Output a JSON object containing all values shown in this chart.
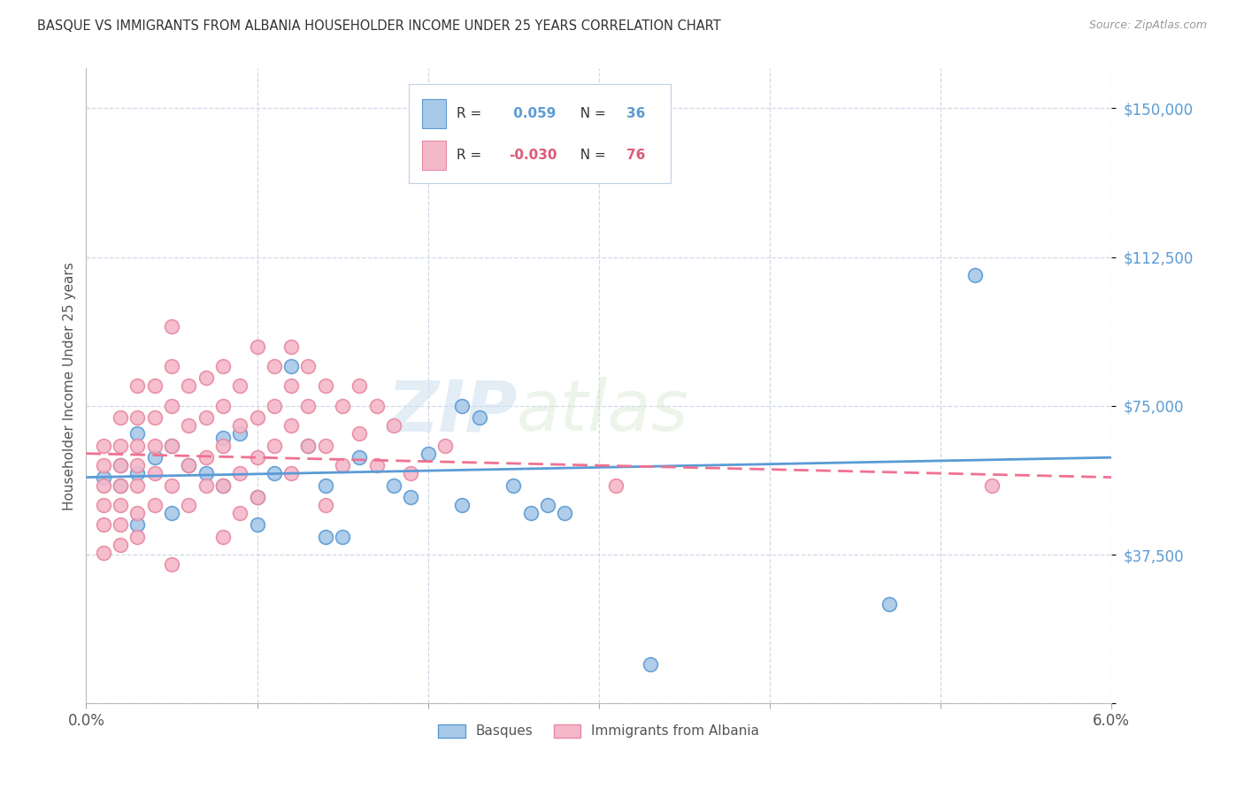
{
  "title": "BASQUE VS IMMIGRANTS FROM ALBANIA HOUSEHOLDER INCOME UNDER 25 YEARS CORRELATION CHART",
  "source": "Source: ZipAtlas.com",
  "ylabel": "Householder Income Under 25 years",
  "xlim": [
    0.0,
    0.06
  ],
  "ylim": [
    0,
    160000
  ],
  "yticks": [
    0,
    37500,
    75000,
    112500,
    150000
  ],
  "xticks": [
    0.0,
    0.01,
    0.02,
    0.03,
    0.04,
    0.05,
    0.06
  ],
  "xtick_labels": [
    "0.0%",
    "",
    "",
    "",
    "",
    "",
    "6.0%"
  ],
  "basque_R": 0.059,
  "basque_N": 36,
  "albania_R": -0.03,
  "albania_N": 76,
  "basque_color": "#a8c8e8",
  "basque_edge_color": "#5b9bd5",
  "albania_color": "#f4b8ca",
  "albania_edge_color": "#e888a0",
  "basque_line_color": "#5b9bd5",
  "albania_line_color": "#f07090",
  "basque_scatter": [
    [
      0.001,
      57000
    ],
    [
      0.002,
      60000
    ],
    [
      0.002,
      55000
    ],
    [
      0.003,
      58000
    ],
    [
      0.003,
      68000
    ],
    [
      0.004,
      62000
    ],
    [
      0.005,
      65000
    ],
    [
      0.006,
      60000
    ],
    [
      0.007,
      58000
    ],
    [
      0.008,
      55000
    ],
    [
      0.008,
      67000
    ],
    [
      0.009,
      68000
    ],
    [
      0.01,
      52000
    ],
    [
      0.011,
      58000
    ],
    [
      0.012,
      85000
    ],
    [
      0.013,
      65000
    ],
    [
      0.014,
      55000
    ],
    [
      0.014,
      42000
    ],
    [
      0.016,
      62000
    ],
    [
      0.018,
      55000
    ],
    [
      0.019,
      52000
    ],
    [
      0.02,
      63000
    ],
    [
      0.022,
      75000
    ],
    [
      0.023,
      72000
    ],
    [
      0.025,
      55000
    ],
    [
      0.026,
      48000
    ],
    [
      0.027,
      50000
    ],
    [
      0.028,
      48000
    ],
    [
      0.033,
      10000
    ],
    [
      0.047,
      25000
    ],
    [
      0.052,
      108000
    ],
    [
      0.003,
      45000
    ],
    [
      0.005,
      48000
    ],
    [
      0.01,
      45000
    ],
    [
      0.015,
      42000
    ],
    [
      0.022,
      50000
    ]
  ],
  "albania_scatter": [
    [
      0.001,
      65000
    ],
    [
      0.001,
      60000
    ],
    [
      0.001,
      55000
    ],
    [
      0.001,
      50000
    ],
    [
      0.001,
      45000
    ],
    [
      0.001,
      38000
    ],
    [
      0.002,
      72000
    ],
    [
      0.002,
      65000
    ],
    [
      0.002,
      60000
    ],
    [
      0.002,
      55000
    ],
    [
      0.002,
      50000
    ],
    [
      0.002,
      45000
    ],
    [
      0.002,
      40000
    ],
    [
      0.003,
      80000
    ],
    [
      0.003,
      72000
    ],
    [
      0.003,
      65000
    ],
    [
      0.003,
      60000
    ],
    [
      0.003,
      55000
    ],
    [
      0.003,
      48000
    ],
    [
      0.003,
      42000
    ],
    [
      0.004,
      80000
    ],
    [
      0.004,
      72000
    ],
    [
      0.004,
      65000
    ],
    [
      0.004,
      58000
    ],
    [
      0.004,
      50000
    ],
    [
      0.005,
      85000
    ],
    [
      0.005,
      95000
    ],
    [
      0.005,
      75000
    ],
    [
      0.005,
      65000
    ],
    [
      0.005,
      55000
    ],
    [
      0.005,
      35000
    ],
    [
      0.006,
      80000
    ],
    [
      0.006,
      70000
    ],
    [
      0.006,
      60000
    ],
    [
      0.006,
      50000
    ],
    [
      0.007,
      82000
    ],
    [
      0.007,
      72000
    ],
    [
      0.007,
      62000
    ],
    [
      0.007,
      55000
    ],
    [
      0.008,
      85000
    ],
    [
      0.008,
      75000
    ],
    [
      0.008,
      65000
    ],
    [
      0.008,
      55000
    ],
    [
      0.008,
      42000
    ],
    [
      0.009,
      80000
    ],
    [
      0.009,
      70000
    ],
    [
      0.009,
      58000
    ],
    [
      0.009,
      48000
    ],
    [
      0.01,
      90000
    ],
    [
      0.01,
      72000
    ],
    [
      0.01,
      62000
    ],
    [
      0.01,
      52000
    ],
    [
      0.011,
      85000
    ],
    [
      0.011,
      75000
    ],
    [
      0.011,
      65000
    ],
    [
      0.012,
      90000
    ],
    [
      0.012,
      80000
    ],
    [
      0.012,
      70000
    ],
    [
      0.012,
      58000
    ],
    [
      0.013,
      85000
    ],
    [
      0.013,
      75000
    ],
    [
      0.013,
      65000
    ],
    [
      0.014,
      80000
    ],
    [
      0.014,
      65000
    ],
    [
      0.014,
      50000
    ],
    [
      0.015,
      75000
    ],
    [
      0.015,
      60000
    ],
    [
      0.016,
      80000
    ],
    [
      0.016,
      68000
    ],
    [
      0.017,
      75000
    ],
    [
      0.017,
      60000
    ],
    [
      0.018,
      70000
    ],
    [
      0.019,
      58000
    ],
    [
      0.021,
      65000
    ],
    [
      0.031,
      55000
    ],
    [
      0.053,
      55000
    ]
  ],
  "watermark_zip": "ZIP",
  "watermark_atlas": "atlas",
  "background_color": "#ffffff",
  "grid_color": "#d0d8e8",
  "title_color": "#333333",
  "axis_label_color": "#555555",
  "ytick_color": "#5b9bd5",
  "xtick_color": "#555555"
}
